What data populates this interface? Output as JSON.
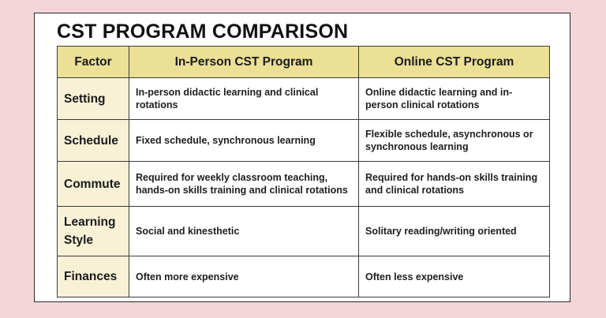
{
  "page": {
    "title": "CST PROGRAM COMPARISON",
    "colors": {
      "background": "#f4d6d8",
      "card": "#ffffff",
      "header_fill": "#ece095",
      "factor_fill": "#f8f1d6",
      "border": "#3a3a3a"
    }
  },
  "table": {
    "headers": [
      "Factor",
      "In-Person CST Program",
      "Online CST Program"
    ],
    "rows": [
      {
        "factor": "Setting",
        "in_person": "In-person didactic learning and clinical rotations",
        "online": "Online didactic learning and in-person clinical rotations"
      },
      {
        "factor": "Schedule",
        "in_person": "Fixed schedule, synchronous learning",
        "online": "Flexible schedule, asynchronous or synchronous learning"
      },
      {
        "factor": "Commute",
        "in_person": "Required for weekly classroom teaching, hands-on skills training and clinical rotations",
        "online": "Required for hands-on skills training and clinical rotations"
      },
      {
        "factor": "Learning Style",
        "in_person": "Social and kinesthetic",
        "online": "Solitary reading/writing oriented"
      },
      {
        "factor": "Finances",
        "in_person": "Often more expensive",
        "online": "Often less expensive"
      }
    ]
  }
}
